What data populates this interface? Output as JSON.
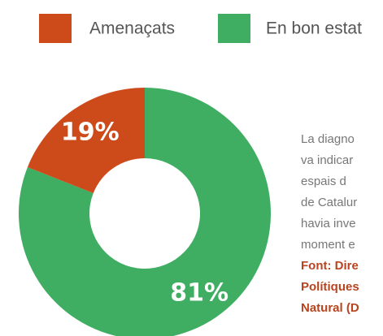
{
  "chart_data": {
    "type": "donut",
    "categories": [
      "Amenaçats",
      "En bon estat"
    ],
    "values": [
      19,
      81
    ],
    "value_labels": [
      "19%",
      "81%"
    ],
    "colors": [
      "#cd4a1b",
      "#3fae62"
    ]
  },
  "text": {
    "paragraph": [
      "La diagno",
      "va indicar",
      "espais d",
      "de Catalur",
      "havia inve",
      "moment e"
    ],
    "source": [
      "Font: Dire",
      "Polítiques",
      "Natural (D"
    ]
  }
}
